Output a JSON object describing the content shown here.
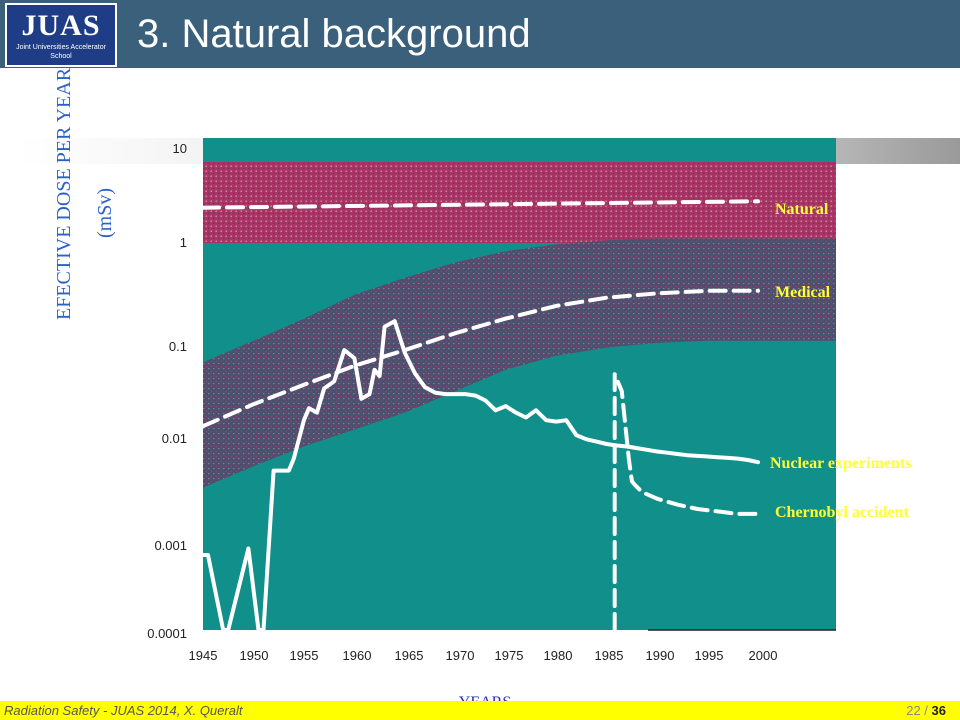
{
  "header": {
    "logo_text": "JUAS",
    "logo_subtitle": "Joint Universities Accelerator School",
    "title": "3. Natural background"
  },
  "footer": {
    "left": "Radiation Safety - JUAS 2014, X. Queralt",
    "page_current": "22",
    "page_separator": " / ",
    "page_total": "36"
  },
  "colors": {
    "header_bg": "#3a607c",
    "plot_bg": "#118f8b",
    "natural_band": "#b03a6a",
    "medical_band": "#4a4d6a",
    "label_yellow": "#ffff33",
    "ylabel_blue": "#2a61c9",
    "footer_bg": "#ffff00"
  },
  "chart_data": {
    "type": "line",
    "title": "",
    "xlabel": "YEARS",
    "ylabel_line1": "EFECTIVE DOSE PER YEAR",
    "ylabel_line2": "(mSv)",
    "yscale": "log",
    "ylim": [
      0.0001,
      10
    ],
    "xlim": [
      1945,
      2000
    ],
    "x_ticks": [
      "1945",
      "1950",
      "1955",
      "1960",
      "1965",
      "1970",
      "1975",
      "1980",
      "1985",
      "1990",
      "1995",
      "2000"
    ],
    "y_ticks": [
      "10",
      "1",
      "0.1",
      "0.01",
      "0.001",
      "0.0001"
    ],
    "bands": [
      {
        "name": "Natural",
        "color": "#b03a6a",
        "x": [
          1945,
          2000
        ],
        "lower": [
          1.0,
          1.0
        ],
        "upper": [
          10,
          10
        ]
      },
      {
        "name": "Medical",
        "color": "#4a4d6a",
        "x": [
          1945,
          1950,
          1955,
          1960,
          1965,
          1970,
          1975,
          1980,
          1985,
          1990,
          1995,
          2000
        ],
        "lower": [
          0.003,
          0.005,
          0.008,
          0.012,
          0.018,
          0.03,
          0.05,
          0.07,
          0.085,
          0.095,
          0.1,
          0.1
        ],
        "upper": [
          0.06,
          0.1,
          0.17,
          0.3,
          0.45,
          0.65,
          0.85,
          1.0,
          1.1,
          1.15,
          1.15,
          1.15
        ]
      }
    ],
    "series": [
      {
        "name": "Natural",
        "style": "dashed",
        "x": [
          1945,
          2000
        ],
        "y": [
          2.4,
          2.8
        ]
      },
      {
        "name": "Medical",
        "style": "dashed",
        "x": [
          1945,
          1950,
          1955,
          1960,
          1965,
          1970,
          1975,
          1980,
          1985,
          1990,
          1995,
          2000
        ],
        "y": [
          0.013,
          0.022,
          0.035,
          0.055,
          0.08,
          0.12,
          0.17,
          0.23,
          0.28,
          0.31,
          0.33,
          0.33
        ]
      },
      {
        "name": "Nuclear experiments",
        "style": "solid",
        "x": [
          1945,
          1945.5,
          1947,
          1947.5,
          1949.5,
          1950.5,
          1951,
          1952,
          1953,
          1953.5,
          1954,
          1955,
          1955.5,
          1956.3,
          1957,
          1958,
          1959,
          1960,
          1960.7,
          1961.5,
          1962,
          1962.5,
          1963,
          1964,
          1965,
          1966,
          1967,
          1968,
          1969,
          1970,
          1971,
          1972,
          1973,
          1974,
          1975,
          1976,
          1977,
          1978,
          1979,
          1980,
          1981,
          1982,
          1983,
          1984,
          1985,
          1986,
          1987,
          1988,
          1989,
          1990,
          1991,
          1992,
          1993,
          1994,
          1995,
          1996,
          1997,
          1998,
          1999,
          2000
        ],
        "y": [
          0.0006,
          0.0006,
          0.0001,
          0.0001,
          0.0007,
          0.0001,
          0.0001,
          0.0045,
          0.0045,
          0.0045,
          0.006,
          0.015,
          0.02,
          0.018,
          0.032,
          0.038,
          0.08,
          0.066,
          0.025,
          0.028,
          0.05,
          0.043,
          0.14,
          0.16,
          0.075,
          0.046,
          0.033,
          0.029,
          0.028,
          0.028,
          0.028,
          0.027,
          0.024,
          0.019,
          0.021,
          0.018,
          0.016,
          0.019,
          0.015,
          0.0145,
          0.015,
          0.0105,
          0.0095,
          0.009,
          0.0085,
          0.0082,
          0.008,
          0.0077,
          0.0074,
          0.0071,
          0.0069,
          0.0067,
          0.0065,
          0.0064,
          0.0063,
          0.0062,
          0.0061,
          0.006,
          0.0058,
          0.0055
        ]
      },
      {
        "name": "Chernobyl accident",
        "style": "dashed",
        "x": [
          1985.8,
          1985.8,
          1986.5,
          1987.2,
          1987.5,
          1987.8,
          1988.5,
          1990,
          1992,
          1994,
          1996,
          1998,
          2000
        ],
        "y": [
          0.0001,
          0.045,
          0.03,
          0.006,
          0.0035,
          0.0032,
          0.0027,
          0.0023,
          0.002,
          0.0018,
          0.0017,
          0.0016,
          0.0016
        ]
      }
    ],
    "series_labels": [
      "Natural",
      "Medical",
      "Nuclear experiments",
      "Chernobyl accident"
    ]
  }
}
